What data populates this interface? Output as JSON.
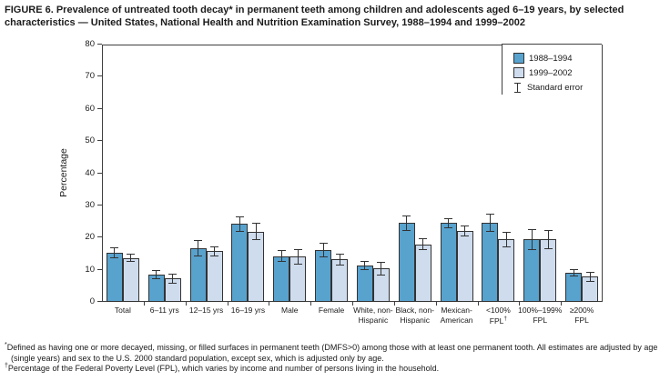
{
  "figure": {
    "title": "FIGURE 6. Prevalence of untreated tooth decay* in permanent teeth among children and adolescents aged 6–19 years, by selected characteristics — United States, National Health and Nutrition Examination Survey, 1988–1994 and 1999–2002"
  },
  "chart_data": {
    "type": "bar",
    "title": "",
    "xlabel": "",
    "ylabel": "Percentage",
    "ylim": [
      0,
      80
    ],
    "yticks": [
      0,
      10,
      20,
      30,
      40,
      50,
      60,
      70,
      80
    ],
    "grid": false,
    "legend_position": "top-right",
    "legend_error_label": "Standard error",
    "categories": [
      "Total",
      "6–11 yrs",
      "12–15 yrs",
      "16–19 yrs",
      "Male",
      "Female",
      "White, non-\nHispanic",
      "Black, non-\nHispanic",
      "Mexican-\nAmerican",
      "<100%\nFPL†",
      "100%–199%\nFPL",
      "≥200%\nFPL"
    ],
    "series": [
      {
        "name": "1988–1994",
        "color": "#58A2CE",
        "values": [
          15.2,
          8.5,
          16.7,
          24.2,
          14.2,
          16.1,
          11.3,
          24.5,
          24.5,
          24.6,
          19.4,
          9.0
        ],
        "errors": [
          1.7,
          1.5,
          2.5,
          2.3,
          1.9,
          2.3,
          1.4,
          2.4,
          1.5,
          2.7,
          3.2,
          1.2
        ]
      },
      {
        "name": "1999–2002",
        "color": "#CEDCEE",
        "values": [
          13.7,
          7.3,
          15.7,
          21.8,
          14.0,
          13.2,
          10.4,
          17.9,
          22.0,
          19.4,
          19.4,
          7.8
        ],
        "errors": [
          1.3,
          1.6,
          1.5,
          2.7,
          2.4,
          1.8,
          2.1,
          1.9,
          1.7,
          2.3,
          2.9,
          1.5
        ]
      }
    ]
  },
  "footnotes": [
    {
      "marker": "*",
      "text": "Defined as having one or more decayed, missing, or filled surfaces in permanent teeth (DMFS>0) among those with at least one permanent tooth. All estimates are adjusted by age (single years) and sex to the U.S. 2000 standard population, except sex, which is adjusted only by age."
    },
    {
      "marker": "†",
      "text": "Percentage of the Federal Poverty Level (FPL), which varies by income and number of persons living in the household."
    }
  ],
  "colors": {
    "series_1988_1994": "#58A2CE",
    "series_1999_2002": "#CEDCEE",
    "frame": "#3f3f3f",
    "error_bar": "#333333",
    "text": "#1a1a1a",
    "background": "#ffffff"
  }
}
